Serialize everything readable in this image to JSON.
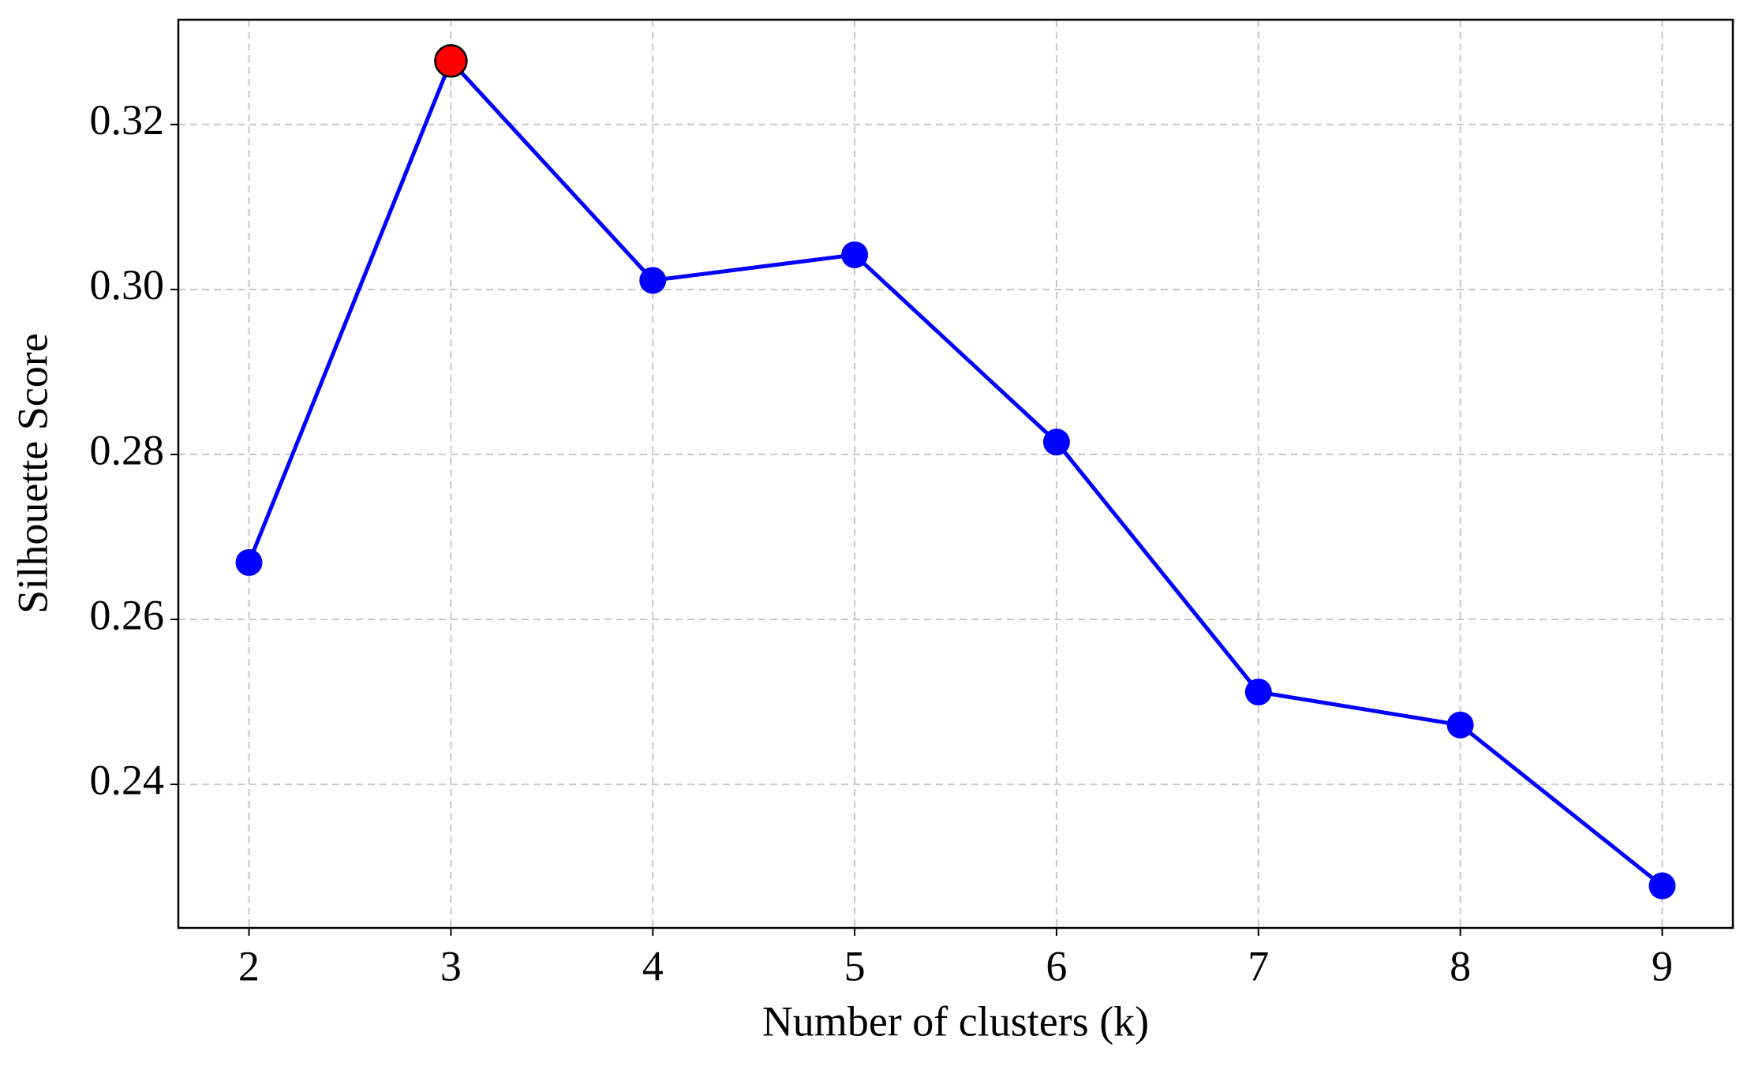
{
  "chart_data": {
    "type": "line",
    "x_label": "Number of clusters (k)",
    "y_label": "Silhouette Score",
    "x": [
      2,
      3,
      4,
      5,
      6,
      7,
      8,
      9
    ],
    "series": [
      {
        "color": "#0000ff",
        "values": [
          0.2669,
          0.3277,
          0.3011,
          0.3042,
          0.2815,
          0.2512,
          0.2472,
          0.2277
        ],
        "point_colors": [
          "#0000ff",
          "#ff0000",
          "#0000ff",
          "#0000ff",
          "#0000ff",
          "#0000ff",
          "#0000ff",
          "#0000ff"
        ]
      }
    ],
    "xlim": [
      1.65,
      9.35
    ],
    "ylim": [
      0.2226,
      0.3327
    ],
    "xticks": [
      2,
      3,
      4,
      5,
      6,
      7,
      8,
      9
    ],
    "yticks": [
      {
        "value": 0.24,
        "label": "0.24"
      },
      {
        "value": 0.26,
        "label": "0.26"
      },
      {
        "value": 0.28,
        "label": "0.28"
      },
      {
        "value": 0.3,
        "label": "0.30"
      },
      {
        "value": 0.32,
        "label": "0.32"
      }
    ],
    "grid": true
  }
}
